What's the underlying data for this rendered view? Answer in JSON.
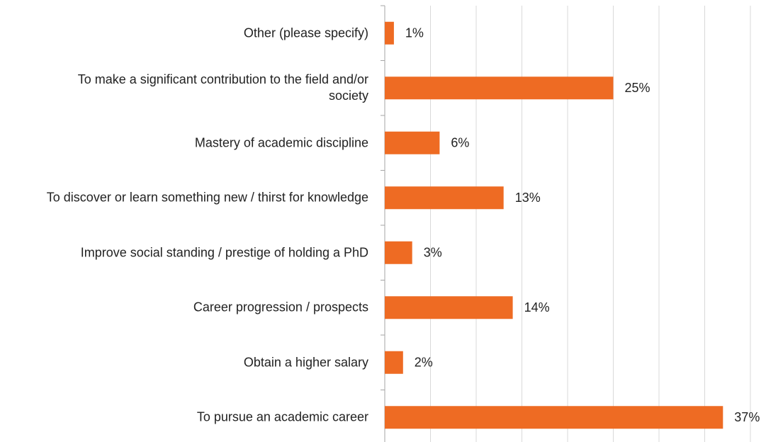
{
  "chart_data": {
    "type": "bar",
    "orientation": "horizontal",
    "categories": [
      "Other (please specify)",
      "To make a significant contribution to the field and/or society",
      "Mastery of academic discipline",
      "To discover or learn something new / thirst for knowledge",
      "Improve social standing / prestige of holding a PhD",
      "Career progression / prospects",
      "Obtain a higher salary",
      "To pursue an academic career"
    ],
    "values": [
      1,
      25,
      6,
      13,
      3,
      14,
      2,
      37
    ],
    "value_labels": [
      "1%",
      "25%",
      "6%",
      "13%",
      "3%",
      "14%",
      "2%",
      "37%"
    ],
    "color": "#ee6b23",
    "xlim": [
      0,
      40
    ],
    "xticks": [
      0,
      5,
      10,
      15,
      20,
      25,
      30,
      35,
      40
    ],
    "grid": true
  }
}
